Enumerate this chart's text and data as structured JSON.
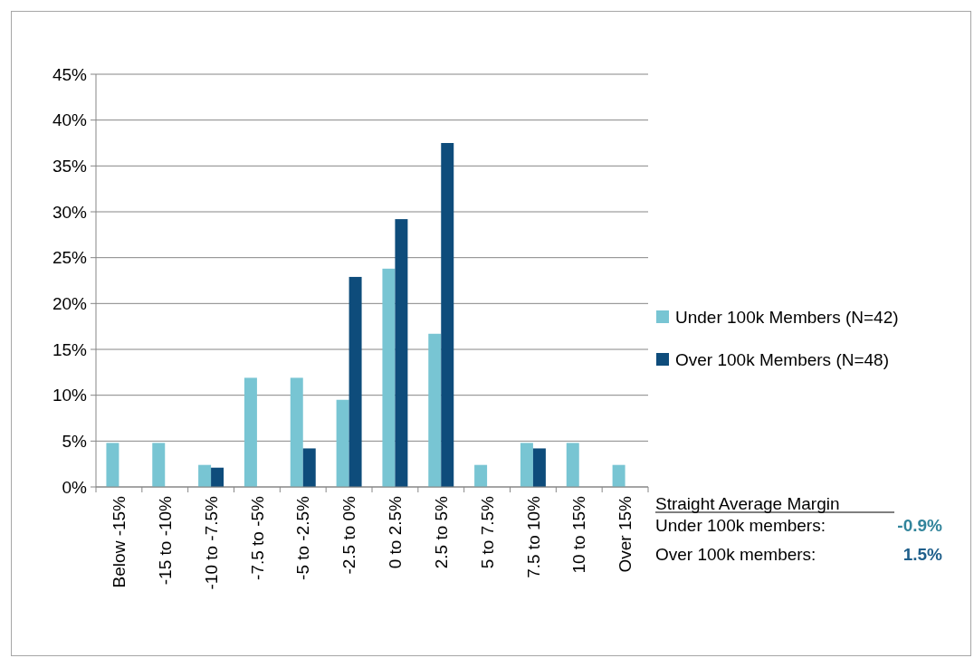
{
  "chart_data": {
    "type": "bar",
    "categories": [
      "Below -15%",
      "-15 to -10%",
      "-10 to -7.5%",
      "-7.5 to -5%",
      "-5 to -2.5%",
      "-2.5 to 0%",
      "0 to 2.5%",
      "2.5 to 5%",
      "5 to 7.5%",
      "7.5 to 10%",
      "10 to 15%",
      "Over 15%"
    ],
    "series": [
      {
        "name": "Under 100k Members (N=42)",
        "color": "#78c5d3",
        "values": [
          4.8,
          4.8,
          2.4,
          11.9,
          11.9,
          9.5,
          23.8,
          16.7,
          2.4,
          4.8,
          4.8,
          2.4
        ]
      },
      {
        "name": "Over 100k Members (N=48)",
        "color": "#0e4c7b",
        "values": [
          0,
          0,
          2.1,
          0,
          4.2,
          22.9,
          29.2,
          37.5,
          0,
          4.2,
          0,
          0
        ]
      }
    ],
    "ylim": [
      0,
      45
    ],
    "yticks": [
      {
        "value": 0,
        "label": "0%"
      },
      {
        "value": 5,
        "label": "5%"
      },
      {
        "value": 10,
        "label": "10%"
      },
      {
        "value": 15,
        "label": "15%"
      },
      {
        "value": 20,
        "label": "20%"
      },
      {
        "value": 25,
        "label": "25%"
      },
      {
        "value": 30,
        "label": "30%"
      },
      {
        "value": 35,
        "label": "35%"
      },
      {
        "value": 40,
        "label": "40%"
      },
      {
        "value": 45,
        "label": "45%"
      }
    ],
    "grid": "y",
    "legend": "right",
    "annotations": [
      "Straight Average Margin",
      "Under 100k members:",
      "-0.9%",
      "Over 100k members:",
      "1.5%"
    ]
  }
}
